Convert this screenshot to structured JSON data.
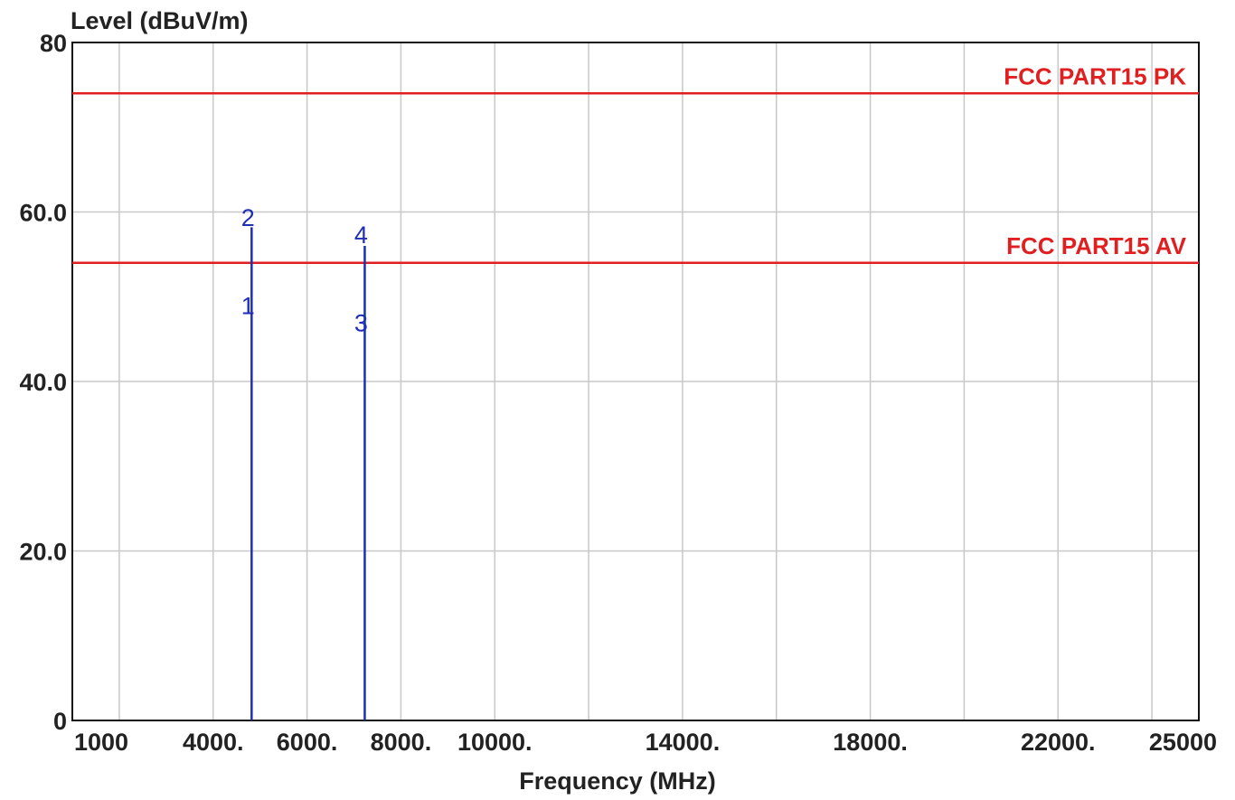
{
  "chart_data": {
    "type": "line",
    "ylabel": "Level (dBuV/m)",
    "xlabel": "Frequency (MHz)",
    "ylim": [
      0,
      80
    ],
    "xlim": [
      1000,
      25000
    ],
    "y_ticks": [
      {
        "value": 0,
        "label": "0"
      },
      {
        "value": 20,
        "label": "20.0"
      },
      {
        "value": 40,
        "label": "40.0"
      },
      {
        "value": 60,
        "label": "60.0"
      },
      {
        "value": 80,
        "label": "80"
      }
    ],
    "x_ticks": [
      {
        "value": 1000,
        "label": "1000"
      },
      {
        "value": 4000,
        "label": "4000."
      },
      {
        "value": 6000,
        "label": "6000."
      },
      {
        "value": 8000,
        "label": "8000."
      },
      {
        "value": 10000,
        "label": "10000."
      },
      {
        "value": 14000,
        "label": "14000."
      },
      {
        "value": 18000,
        "label": "18000."
      },
      {
        "value": 22000,
        "label": "22000."
      },
      {
        "value": 25000,
        "label": "25000"
      }
    ],
    "x_grid": [
      2000,
      4000,
      6000,
      8000,
      10000,
      12000,
      14000,
      16000,
      18000,
      20000,
      22000,
      24000
    ],
    "grid": true,
    "limit_lines": [
      {
        "name": "FCC PART15  PK",
        "value": 74,
        "color": "#e02020"
      },
      {
        "name": "FCC PART15  AV",
        "value": 54,
        "color": "#e02020"
      }
    ],
    "emissions": [
      {
        "frequency": 4820,
        "value": 58.2,
        "color": "#1f2fb5"
      },
      {
        "frequency": 7230,
        "value": 56.0,
        "color": "#1f2fb5"
      }
    ],
    "markers": [
      {
        "label": "1",
        "frequency": 4820,
        "value": 49.0
      },
      {
        "label": "2",
        "frequency": 4820,
        "value": 59.4
      },
      {
        "label": "3",
        "frequency": 7230,
        "value": 47.0
      },
      {
        "label": "4",
        "frequency": 7230,
        "value": 57.4
      }
    ],
    "marker_color": "#1f2fb5"
  }
}
